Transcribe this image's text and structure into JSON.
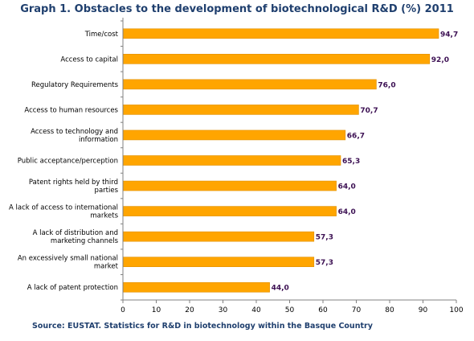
{
  "chart_data": {
    "type": "bar",
    "orientation": "horizontal",
    "title": "Graph 1. Obstacles to the development of biotechnological R&D (%) 2011",
    "source": "Source: EUSTAT. Statistics for R&D in biotechnology within the Basque Country",
    "categories": [
      [
        "Time/cost"
      ],
      [
        "Access to capital"
      ],
      [
        "Regulatory Requirements"
      ],
      [
        "Access to human resources"
      ],
      [
        "Access to technology and",
        "information"
      ],
      [
        "Public acceptance/perception"
      ],
      [
        "Patent rights held by third",
        "parties"
      ],
      [
        "A lack of access to international",
        "markets"
      ],
      [
        "A lack of distribution and",
        "marketing channels"
      ],
      [
        "An excessively small national",
        "market"
      ],
      [
        "A lack of patent protection"
      ]
    ],
    "values": [
      94.7,
      92.0,
      76.0,
      70.7,
      66.7,
      65.3,
      64.0,
      64.0,
      57.3,
      57.3,
      44.0
    ],
    "value_labels": [
      "94,7",
      "92,0",
      "76,0",
      "70,7",
      "66,7",
      "65,3",
      "64,0",
      "64,0",
      "57,3",
      "57,3",
      "44,0"
    ],
    "xticks": [
      "0",
      "10",
      "20",
      "30",
      "40",
      "50",
      "60",
      "70",
      "80",
      "90",
      "100"
    ],
    "xlim": [
      0,
      100
    ],
    "grid": false,
    "legend": "none",
    "colors": {
      "bar": "#FFA500",
      "bar_edge": "#E08F00",
      "value_label": "#3C1053",
      "title": "#1F3F6E",
      "axis": "#808080"
    }
  }
}
